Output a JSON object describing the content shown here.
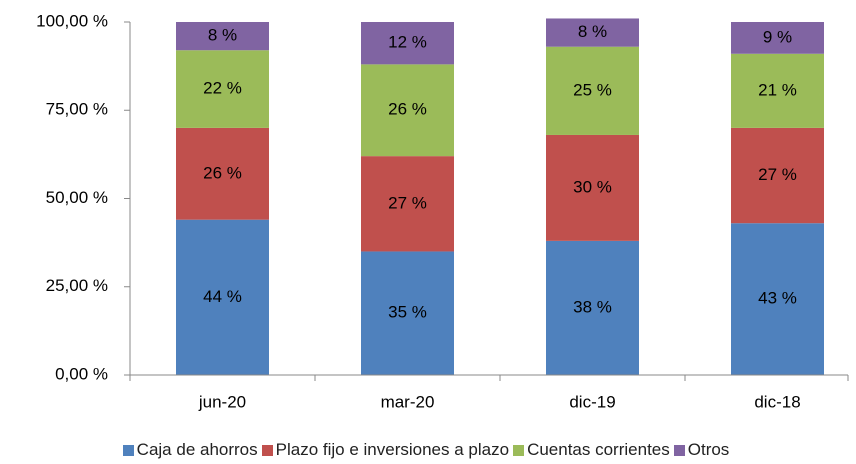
{
  "chart_data": {
    "type": "stacked_bar",
    "categories": [
      "jun-20",
      "mar-20",
      "dic-19",
      "dic-18"
    ],
    "series": [
      {
        "name": "Caja de ahorros",
        "color": "#4f81bd",
        "values": [
          44,
          35,
          38,
          43
        ],
        "value_labels": [
          "44 %",
          "35 %",
          "38 %",
          "43 %"
        ]
      },
      {
        "name": "Plazo fijo e inversiones a plazo",
        "color": "#c0504d",
        "values": [
          26,
          27,
          30,
          27
        ],
        "value_labels": [
          "26 %",
          "27 %",
          "30 %",
          "27 %"
        ]
      },
      {
        "name": "Cuentas corrientes",
        "color": "#9bbb59",
        "values": [
          22,
          26,
          25,
          21
        ],
        "value_labels": [
          "22 %",
          "26 %",
          "25 %",
          "21 %"
        ]
      },
      {
        "name": "Otros",
        "color": "#8064a2",
        "values": [
          8,
          12,
          8,
          9
        ],
        "value_labels": [
          "8 %",
          "12 %",
          "8 %",
          "9 %"
        ]
      }
    ],
    "ylim": [
      0,
      100
    ],
    "yticks": [
      {
        "value": 0,
        "label": "0,00 %"
      },
      {
        "value": 25,
        "label": "25,00 %"
      },
      {
        "value": 50,
        "label": "50,00 %"
      },
      {
        "value": 75,
        "label": "75,00 %"
      },
      {
        "value": 100,
        "label": "100,00 %"
      }
    ],
    "legend": "bottom"
  }
}
